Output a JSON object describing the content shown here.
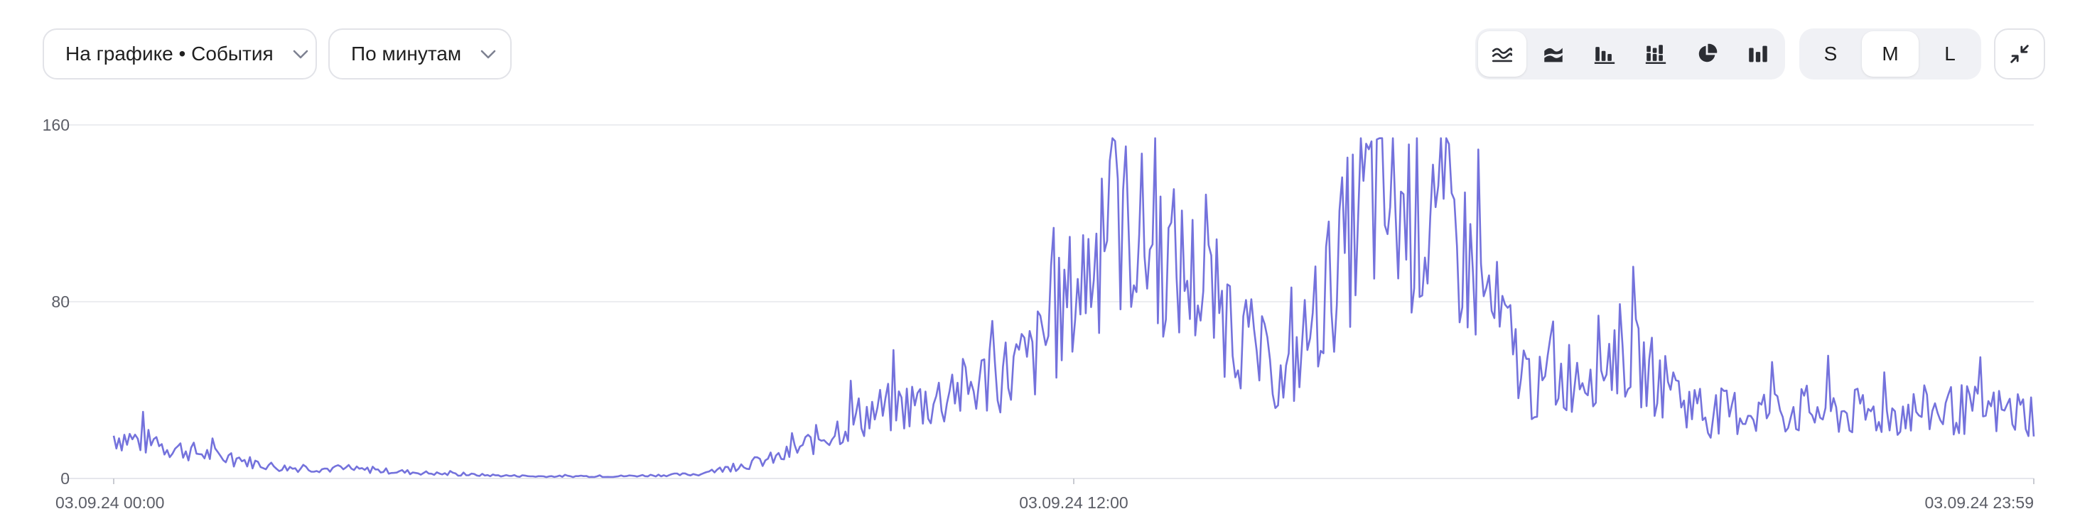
{
  "toolbar": {
    "metric_dropdown": {
      "label": "На графике • События",
      "icon": "chevron-down-icon"
    },
    "granularity_dropdown": {
      "label": "По минутам",
      "icon": "chevron-down-icon"
    },
    "chart_types": [
      {
        "icon": "line-chart-icon",
        "active": true
      },
      {
        "icon": "stacked-area-icon",
        "active": false
      },
      {
        "icon": "bar-chart-icon",
        "active": false
      },
      {
        "icon": "stacked-bar-icon",
        "active": false
      },
      {
        "icon": "pie-chart-icon",
        "active": false
      },
      {
        "icon": "column-chart-icon",
        "active": false
      }
    ],
    "sizes": [
      {
        "label": "S",
        "active": false
      },
      {
        "label": "M",
        "active": true
      },
      {
        "label": "L",
        "active": false
      }
    ],
    "collapse_icon": "collapse-icon"
  },
  "colors": {
    "line": "#7472dc",
    "grid": "#e6e7ec",
    "axis_text": "#5b5d66"
  },
  "chart_data": {
    "type": "line",
    "title": "",
    "xlabel": "",
    "ylabel": "",
    "ylim": [
      0,
      160
    ],
    "yticks": [
      "0",
      "80",
      "160"
    ],
    "x_start": "03.09.24 00:00",
    "x_end": "03.09.24 23:59",
    "xtick_labels": [
      "03.09.24 00:00",
      "03.09.24 12:00",
      "03.09.24 23:59"
    ],
    "grid": true,
    "legend": "none",
    "series": [
      {
        "name": "",
        "note": "hourly approximate envelope of per-minute values (index = hour 0..23)",
        "values": [
          20,
          12,
          5,
          4,
          2,
          1,
          1,
          2,
          10,
          30,
          38,
          55,
          120,
          90,
          42,
          130,
          115,
          40,
          60,
          30,
          32,
          30,
          32,
          30
        ]
      }
    ]
  }
}
